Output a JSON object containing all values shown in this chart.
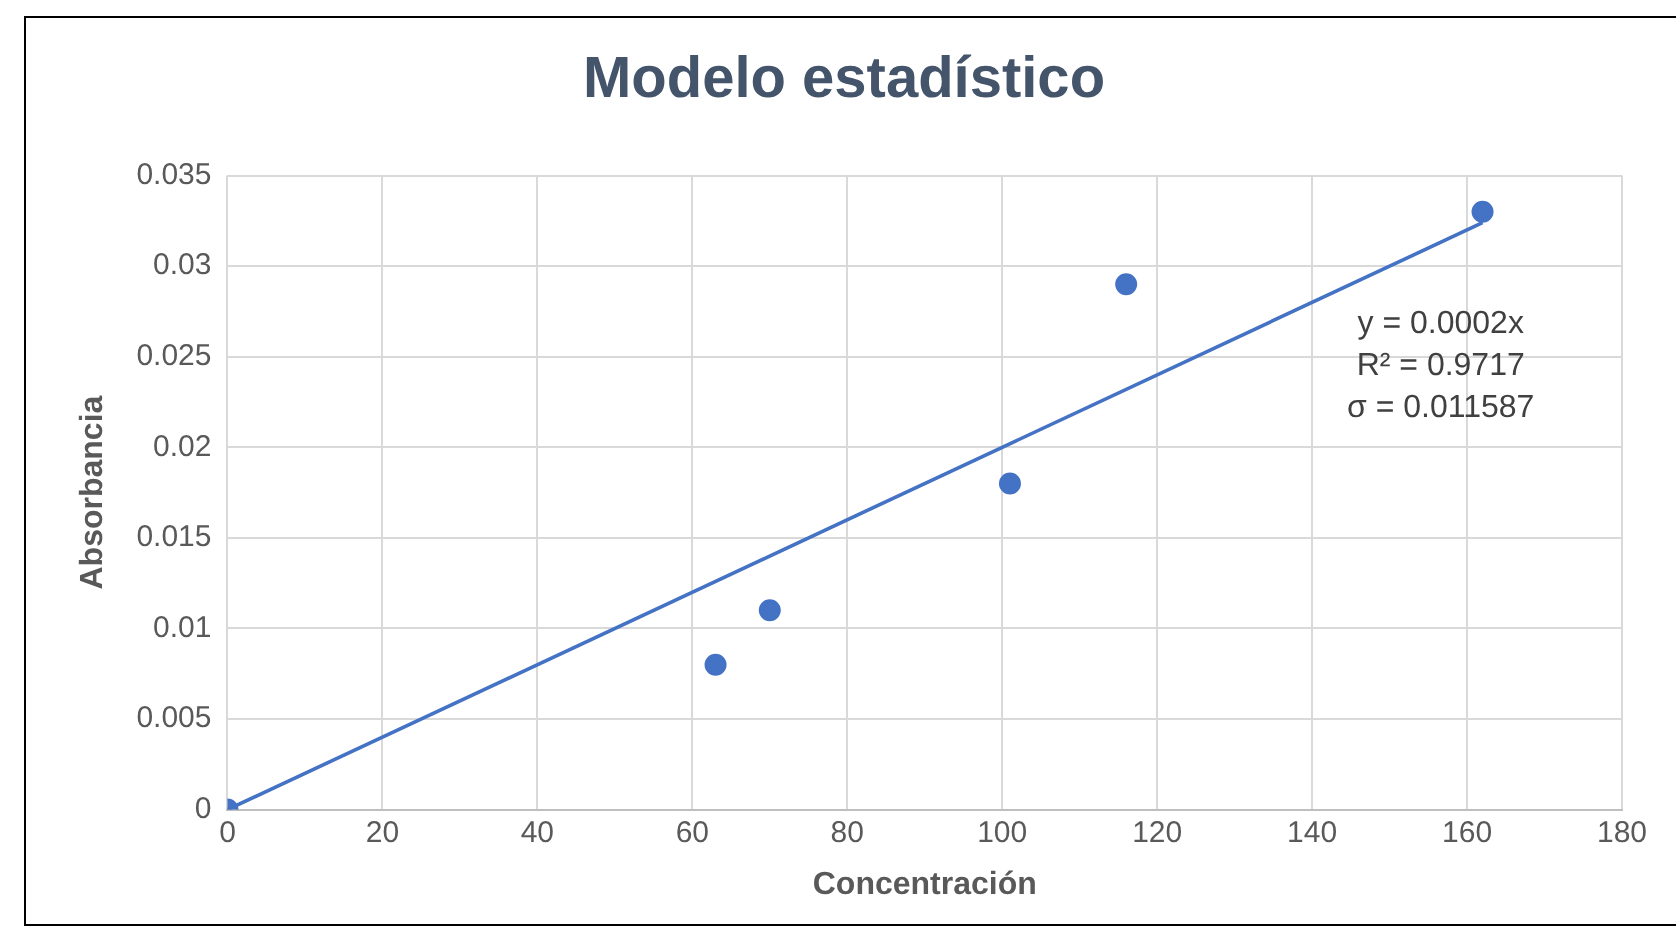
{
  "chart_data": {
    "type": "scatter",
    "title": "Modelo estadístico",
    "xlabel": "Concentración",
    "ylabel": "Absorbancia",
    "series": [
      {
        "color": "#4472c4",
        "marker": "circle",
        "x": [
          0,
          63,
          70,
          101,
          116,
          162
        ],
        "values": [
          0,
          0.008,
          0.011,
          0.018,
          0.029,
          0.033
        ]
      },
      {
        "type": "line",
        "color": "#4472c4",
        "marker": "none",
        "x": [
          0,
          162
        ],
        "values": [
          0,
          0.0324
        ]
      }
    ],
    "xlim": [
      0,
      180
    ],
    "xticks": [
      0,
      20,
      40,
      60,
      80,
      100,
      120,
      140,
      160,
      180
    ],
    "ylim": [
      0,
      0.035
    ],
    "yticks": [
      0,
      0.005,
      0.01,
      0.015,
      0.02,
      0.025,
      0.03,
      0.035
    ],
    "grid": true,
    "legend": false,
    "annotations": [
      "y = 0.0002x",
      "R² = 0.9717",
      "σ = 0.011587"
    ]
  }
}
